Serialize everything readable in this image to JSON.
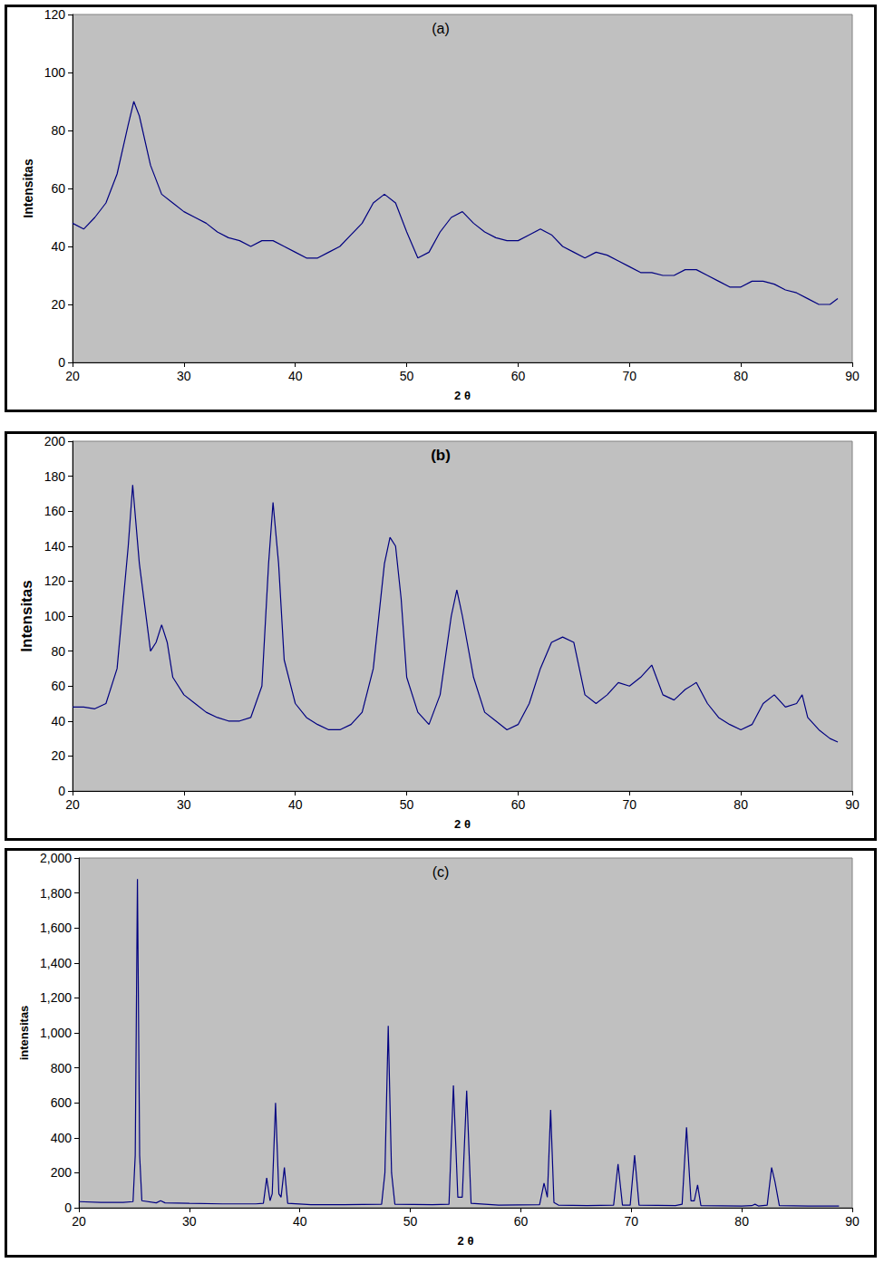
{
  "chart_data": [
    {
      "type": "line",
      "title": "(a)",
      "x_label": "2 θ",
      "y_label": "Intensitas",
      "color": "#000080",
      "grid": false,
      "xlim": [
        20,
        90
      ],
      "xticks": [
        20,
        30,
        40,
        50,
        60,
        70,
        80,
        90
      ],
      "ylim": [
        0,
        120
      ],
      "yticks": [
        0,
        20,
        40,
        60,
        80,
        100,
        120
      ],
      "x": [
        20,
        21,
        22,
        23,
        24,
        25,
        25.5,
        26,
        27,
        28,
        29,
        30,
        31,
        32,
        33,
        34,
        35,
        36,
        37,
        38,
        39,
        40,
        41,
        42,
        43,
        44,
        45,
        46,
        47,
        48,
        49,
        50,
        51,
        52,
        53,
        54,
        55,
        56,
        57,
        58,
        59,
        60,
        61,
        62,
        63,
        64,
        65,
        66,
        67,
        68,
        69,
        70,
        71,
        72,
        73,
        74,
        75,
        76,
        77,
        78,
        79,
        80,
        81,
        82,
        83,
        84,
        85,
        86,
        87,
        88,
        88.7
      ],
      "values": [
        48,
        46,
        50,
        55,
        65,
        82,
        90,
        85,
        68,
        58,
        55,
        52,
        50,
        48,
        45,
        43,
        42,
        40,
        42,
        42,
        40,
        38,
        36,
        36,
        38,
        40,
        44,
        48,
        55,
        58,
        55,
        45,
        36,
        38,
        45,
        50,
        52,
        48,
        45,
        43,
        42,
        42,
        44,
        46,
        44,
        40,
        38,
        36,
        38,
        37,
        35,
        33,
        31,
        31,
        30,
        30,
        32,
        32,
        30,
        28,
        26,
        26,
        28,
        28,
        27,
        25,
        24,
        22,
        20,
        20,
        22
      ]
    },
    {
      "type": "line",
      "title": "(b)",
      "x_label": "2 θ",
      "y_label": "Intensitas",
      "color": "#000080",
      "grid": false,
      "xlim": [
        20,
        90
      ],
      "xticks": [
        20,
        30,
        40,
        50,
        60,
        70,
        80,
        90
      ],
      "ylim": [
        0,
        200
      ],
      "yticks": [
        0,
        20,
        40,
        60,
        80,
        100,
        120,
        140,
        160,
        180,
        200
      ],
      "x": [
        20,
        21,
        22,
        23,
        24,
        25,
        25.4,
        26,
        27,
        27.5,
        28,
        28.5,
        29,
        30,
        31,
        32,
        33,
        34,
        35,
        36,
        37,
        37.6,
        38,
        38.5,
        39,
        40,
        41,
        42,
        43,
        44,
        45,
        46,
        47,
        48,
        48.5,
        49,
        49.5,
        50,
        51,
        52,
        53,
        54,
        54.5,
        55,
        56,
        57,
        58,
        59,
        60,
        61,
        62,
        63,
        64,
        65,
        66,
        67,
        68,
        69,
        70,
        71,
        72,
        73,
        74,
        75,
        76,
        77,
        78,
        79,
        80,
        81,
        82,
        83,
        84,
        85,
        85.5,
        86,
        87,
        88,
        88.7
      ],
      "values": [
        48,
        48,
        47,
        50,
        70,
        140,
        175,
        130,
        80,
        85,
        95,
        85,
        65,
        55,
        50,
        45,
        42,
        40,
        40,
        42,
        60,
        130,
        165,
        130,
        75,
        50,
        42,
        38,
        35,
        35,
        38,
        45,
        70,
        130,
        145,
        140,
        110,
        65,
        45,
        38,
        55,
        100,
        115,
        100,
        65,
        45,
        40,
        35,
        38,
        50,
        70,
        85,
        88,
        85,
        55,
        50,
        55,
        62,
        60,
        65,
        72,
        55,
        52,
        58,
        62,
        50,
        42,
        38,
        35,
        38,
        50,
        55,
        48,
        50,
        55,
        42,
        35,
        30,
        28
      ]
    },
    {
      "type": "line",
      "title": "(c)",
      "x_label": "2 θ",
      "y_label": "intensitas",
      "color": "#000080",
      "grid": false,
      "xlim": [
        20,
        90
      ],
      "xticks": [
        20,
        30,
        40,
        50,
        60,
        70,
        80,
        90
      ],
      "ylim": [
        0,
        2000
      ],
      "yticks": [
        0,
        200,
        400,
        600,
        800,
        1000,
        1200,
        1400,
        1600,
        1800,
        2000
      ],
      "x": [
        20,
        22,
        24,
        24.9,
        25.1,
        25.3,
        25.5,
        25.7,
        27,
        27.4,
        27.8,
        30,
        33,
        36,
        36.7,
        37.0,
        37.3,
        37.5,
        37.8,
        38.1,
        38.3,
        38.6,
        38.9,
        41,
        44,
        47.4,
        47.7,
        48.0,
        48.3,
        48.6,
        52,
        53.5,
        53.9,
        54.3,
        54.7,
        55.1,
        55.5,
        58,
        61.7,
        62.1,
        62.4,
        62.7,
        63.0,
        63.4,
        66,
        68.4,
        68.8,
        69.2,
        69.9,
        70.3,
        70.7,
        74,
        74.6,
        75.0,
        75.4,
        75.7,
        76.0,
        76.3,
        80,
        80.9,
        81.2,
        81.5,
        82.3,
        82.7,
        83.0,
        83.4,
        86,
        88.8
      ],
      "values": [
        35,
        30,
        30,
        35,
        300,
        1880,
        300,
        40,
        28,
        40,
        28,
        25,
        22,
        22,
        25,
        170,
        40,
        80,
        600,
        80,
        60,
        230,
        25,
        18,
        18,
        20,
        200,
        1040,
        200,
        20,
        18,
        20,
        700,
        60,
        60,
        670,
        25,
        15,
        18,
        140,
        60,
        560,
        30,
        15,
        12,
        15,
        250,
        15,
        15,
        300,
        15,
        12,
        20,
        460,
        40,
        40,
        130,
        12,
        10,
        12,
        20,
        10,
        15,
        230,
        150,
        12,
        10,
        10
      ]
    }
  ]
}
